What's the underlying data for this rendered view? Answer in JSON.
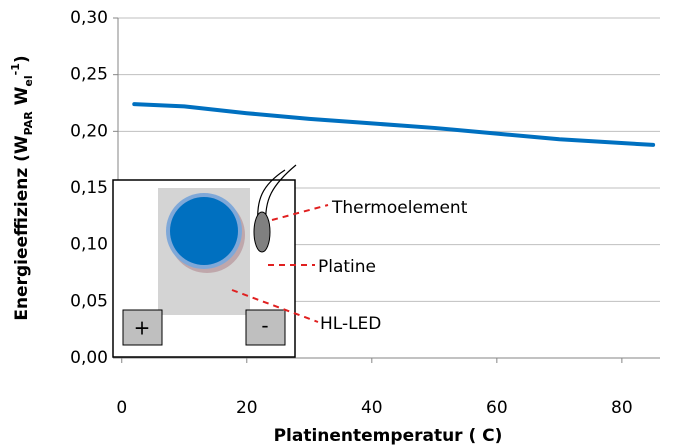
{
  "chart_data": {
    "type": "line",
    "y_label_parts": [
      "Energieeffizienz (W",
      "PAR",
      " W",
      "el",
      "-1",
      ")"
    ],
    "x_label": "Platinentemperatur ( C)",
    "x": [
      2,
      10,
      20,
      30,
      40,
      50,
      60,
      70,
      85
    ],
    "series": [
      {
        "color": "#0070c0",
        "values": [
          0.224,
          0.222,
          0.216,
          0.211,
          0.207,
          0.203,
          0.198,
          0.193,
          0.188
        ]
      }
    ],
    "xlim": [
      -0.6,
      86.1
    ],
    "xticks": [
      0,
      20,
      40,
      60,
      80
    ],
    "ylim": [
      0,
      0.3
    ],
    "yticks": [
      {
        "value": 0,
        "label": "0,00"
      },
      {
        "value": 0.05,
        "label": "0,05"
      },
      {
        "value": 0.1,
        "label": "0,10"
      },
      {
        "value": 0.15,
        "label": "0,15"
      },
      {
        "value": 0.2,
        "label": "0,20"
      },
      {
        "value": 0.25,
        "label": "0,25"
      },
      {
        "value": 0.3,
        "label": "0,30"
      }
    ],
    "grid": true,
    "annotations": [
      "Thermoelement",
      "Platine",
      "HL-LED",
      "+",
      "-"
    ]
  }
}
